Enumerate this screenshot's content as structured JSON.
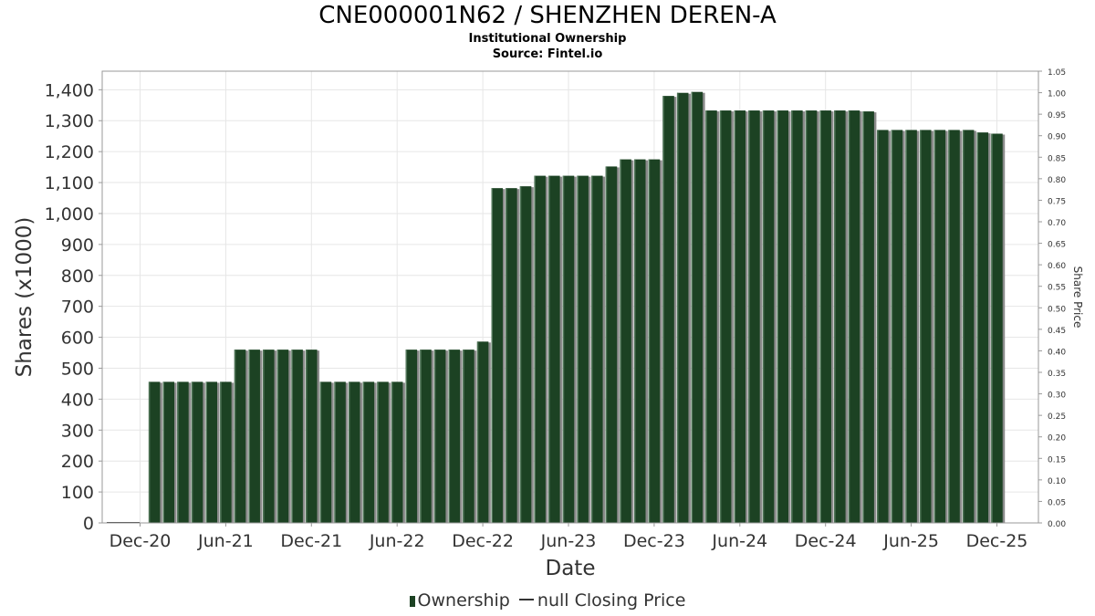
{
  "chart_data": {
    "type": "bar",
    "title": "CNE000001N62 / SHENZHEN DEREN-A",
    "subtitles": [
      "Institutional Ownership",
      "Source: Fintel.io"
    ],
    "xlabel": "Date",
    "ylabel": "Shares (x1000)",
    "y2label": "Share Price",
    "ylim": [
      0,
      1460
    ],
    "y2lim": [
      0,
      1.05
    ],
    "yticks": [
      0,
      100,
      200,
      300,
      400,
      500,
      600,
      700,
      800,
      900,
      1000,
      1100,
      1200,
      1300,
      1400
    ],
    "ytick_labels": [
      "0",
      "100",
      "200",
      "300",
      "400",
      "500",
      "600",
      "700",
      "800",
      "900",
      "1,000",
      "1,100",
      "1,200",
      "1,300",
      "1,400"
    ],
    "y2ticks": [
      "0.00",
      "0.05",
      "0.10",
      "0.15",
      "0.20",
      "0.25",
      "0.30",
      "0.35",
      "0.40",
      "0.45",
      "0.50",
      "0.55",
      "0.60",
      "0.65",
      "0.70",
      "0.75",
      "0.80",
      "0.85",
      "0.90",
      "0.95",
      "1.00",
      "1.05"
    ],
    "xtick_labels": [
      "Dec-20",
      "Jun-21",
      "Dec-21",
      "Jun-22",
      "Dec-22",
      "Jun-23",
      "Dec-23",
      "Jun-24",
      "Dec-24",
      "Jun-25",
      "Dec-25"
    ],
    "grid": true,
    "legend_position": "bottom",
    "series": [
      {
        "name": "Ownership",
        "color": "#1c4223",
        "values": [
          456,
          456,
          456,
          456,
          456,
          456,
          560,
          560,
          560,
          560,
          560,
          560,
          456,
          456,
          456,
          456,
          456,
          456,
          560,
          560,
          560,
          560,
          560,
          586,
          1082,
          1082,
          1088,
          1122,
          1122,
          1122,
          1122,
          1122,
          1152,
          1175,
          1175,
          1175,
          1380,
          1390,
          1393,
          1333,
          1333,
          1333,
          1333,
          1333,
          1333,
          1333,
          1333,
          1333,
          1333,
          1333,
          1330,
          1270,
          1270,
          1270,
          1270,
          1270,
          1270,
          1270,
          1262,
          1258
        ]
      },
      {
        "name": "null Closing Price",
        "color": "#333333",
        "values": []
      }
    ]
  },
  "legend": {
    "ownership_label": "Ownership",
    "price_label": "null Closing Price"
  }
}
